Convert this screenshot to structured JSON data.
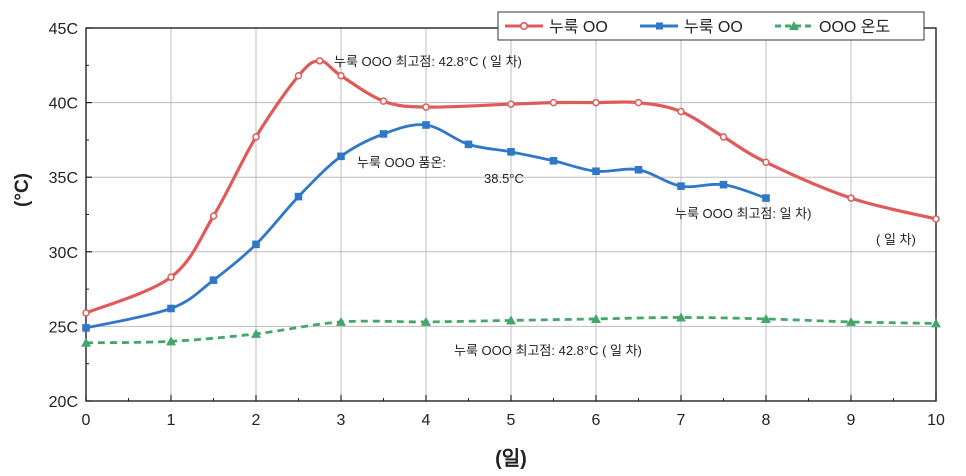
{
  "chart_data": {
    "type": "line",
    "title": "",
    "xlabel": "(일)",
    "ylabel": "(°C)",
    "xlim": [
      0,
      10
    ],
    "ylim": [
      20,
      45
    ],
    "xticks": [
      "0",
      "1",
      "2",
      "3",
      "4",
      "5",
      "6",
      "7",
      "8",
      "9",
      "10"
    ],
    "yticks": [
      "20C",
      "25C",
      "30C",
      "35C",
      "40C",
      "45C"
    ],
    "grid": true,
    "legend_position": "top-right",
    "series": [
      {
        "name": "누룩 OO",
        "color": "#e05a5a",
        "marker": "circle",
        "dash": "solid",
        "x": [
          0,
          1,
          1.5,
          2,
          2.5,
          2.75,
          3,
          3.5,
          4,
          5,
          5.5,
          6,
          6.5,
          7,
          7.5,
          8,
          9,
          10
        ],
        "y": [
          25.9,
          28.3,
          32.4,
          37.7,
          41.8,
          42.8,
          41.8,
          40.1,
          39.7,
          39.9,
          40.0,
          40.0,
          40.0,
          39.4,
          37.7,
          36.0,
          33.6,
          32.2
        ]
      },
      {
        "name": "누룩 OO",
        "color": "#2f78c8",
        "marker": "square",
        "dash": "solid",
        "x": [
          0,
          1,
          1.5,
          2,
          2.5,
          3,
          3.5,
          4,
          4.5,
          5,
          5.5,
          6,
          6.5,
          7,
          7.5,
          8
        ],
        "y": [
          24.9,
          26.2,
          28.1,
          30.5,
          33.7,
          36.4,
          37.9,
          38.5,
          37.2,
          36.7,
          36.1,
          35.4,
          35.5,
          34.4,
          34.5,
          33.6
        ]
      },
      {
        "name": "OOO 온도",
        "color": "#43a66a",
        "marker": "triangle",
        "dash": "dashed",
        "x": [
          0,
          1,
          2,
          3,
          4,
          5,
          6,
          7,
          8,
          9,
          10
        ],
        "y": [
          23.9,
          24.0,
          24.5,
          25.3,
          25.3,
          25.4,
          25.5,
          25.6,
          25.5,
          25.3,
          25.2
        ]
      }
    ],
    "annotations": [
      {
        "text": "누룩 OOO  최고점: 42.8°C (  일 차)"
      },
      {
        "text": "누룩 OOO  품온:"
      },
      {
        "text": "38.5°C"
      },
      {
        "text": "누룩 OOO  최고점:     일 차)"
      },
      {
        "text": "(  일 차)"
      },
      {
        "text": "누룩   OOO 최고점: 42.8°C (  일 차)"
      }
    ]
  }
}
